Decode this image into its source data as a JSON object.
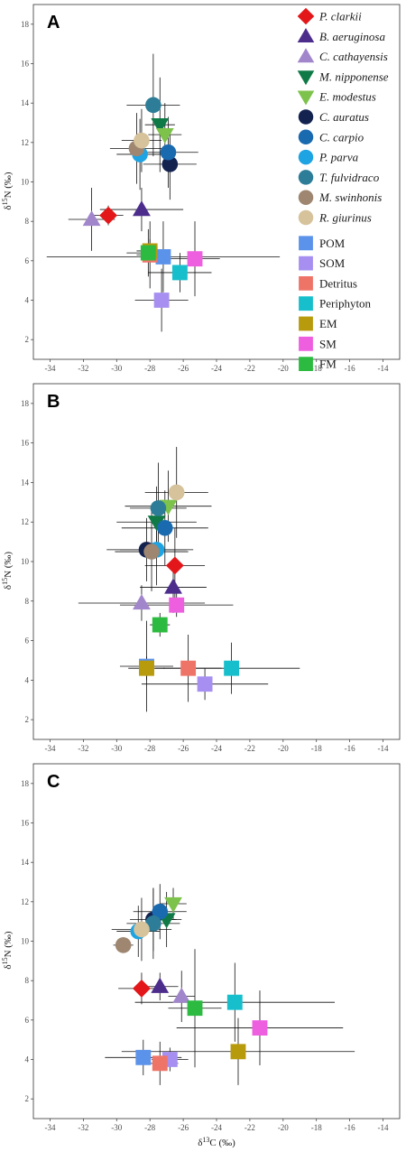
{
  "chart_data": [
    {
      "type": "scatter",
      "panel": "A",
      "xlabel": "",
      "ylabel": "δ15N (‰)",
      "xlim": [
        -35,
        -13
      ],
      "ylim": [
        1,
        19
      ],
      "xticks": [
        -34,
        -32,
        -30,
        -28,
        -26,
        -24,
        -22,
        -20,
        -18,
        -16,
        -14
      ],
      "yticks": [
        2,
        4,
        6,
        8,
        10,
        12,
        14,
        16,
        18
      ],
      "grid": false,
      "legend": "top-right",
      "points": [
        {
          "name": "P. clarkii",
          "x": -30.5,
          "y": 8.3,
          "xerr": 0.9,
          "yerr": 0.5
        },
        {
          "name": "B. aeruginosa",
          "x": -28.5,
          "y": 8.6,
          "xerr": 2.5,
          "yerr": 1.1
        },
        {
          "name": "C. cathayensis",
          "x": -31.5,
          "y": 8.1,
          "xerr": 1.4,
          "yerr": 1.6
        },
        {
          "name": "M. nipponense",
          "x": -27.4,
          "y": 12.9,
          "xerr": 0.9,
          "yerr": 2.4
        },
        {
          "name": "E. modestus",
          "x": -27.1,
          "y": 12.4,
          "xerr": 1.0,
          "yerr": 1.6
        },
        {
          "name": "C. auratus",
          "x": -26.8,
          "y": 10.9,
          "xerr": 1.6,
          "yerr": 1.8
        },
        {
          "name": "C. carpio",
          "x": -26.9,
          "y": 11.5,
          "xerr": 1.8,
          "yerr": 1.8
        },
        {
          "name": "P. parva",
          "x": -28.6,
          "y": 11.4,
          "xerr": 1.4,
          "yerr": 1.8
        },
        {
          "name": "T. fulvidraco",
          "x": -27.8,
          "y": 13.9,
          "xerr": 1.6,
          "yerr": 2.6
        },
        {
          "name": "M. swinhonis",
          "x": -28.8,
          "y": 11.7,
          "xerr": 1.6,
          "yerr": 1.8
        },
        {
          "name": "R. giurinus",
          "x": -28.5,
          "y": 12.1,
          "xerr": 1.2,
          "yerr": 1.6
        },
        {
          "name": "POM",
          "x": -27.2,
          "y": 6.2,
          "xerr": 7.0,
          "yerr": 1.8
        },
        {
          "name": "SOM",
          "x": -27.3,
          "y": 4.0,
          "xerr": 1.6,
          "yerr": 1.6
        },
        {
          "name": "Detritus",
          "x": -28.0,
          "y": 6.3,
          "xerr": 0.8,
          "yerr": 1.7
        },
        {
          "name": "Periphyton",
          "x": -26.2,
          "y": 5.4,
          "xerr": 1.9,
          "yerr": 1.0
        },
        {
          "name": "EM",
          "x": -28.0,
          "y": 6.5,
          "xerr": 0.8,
          "yerr": 0.6
        },
        {
          "name": "SM",
          "x": -25.3,
          "y": 6.1,
          "xerr": 1.5,
          "yerr": 1.9
        },
        {
          "name": "FM",
          "x": -28.1,
          "y": 6.4,
          "xerr": 1.3,
          "yerr": 1.2
        }
      ]
    },
    {
      "type": "scatter",
      "panel": "B",
      "xlabel": "",
      "ylabel": "δ15N (‰)",
      "xlim": [
        -35,
        -13
      ],
      "ylim": [
        1,
        19
      ],
      "xticks": [
        -34,
        -32,
        -30,
        -28,
        -26,
        -24,
        -22,
        -20,
        -18,
        -16,
        -14
      ],
      "yticks": [
        2,
        4,
        6,
        8,
        10,
        12,
        14,
        16,
        18
      ],
      "grid": false,
      "points": [
        {
          "name": "P. clarkii",
          "x": -26.5,
          "y": 9.8,
          "xerr": 1.8,
          "yerr": 1.9
        },
        {
          "name": "B. aeruginosa",
          "x": -26.6,
          "y": 8.7,
          "xerr": 2.0,
          "yerr": 1.3
        },
        {
          "name": "C. cathayensis",
          "x": -28.5,
          "y": 7.9,
          "xerr": 3.8,
          "yerr": 0.9
        },
        {
          "name": "M. nipponense",
          "x": -27.6,
          "y": 12.0,
          "xerr": 2.4,
          "yerr": 1.8
        },
        {
          "name": "E. modestus",
          "x": -26.9,
          "y": 12.8,
          "xerr": 2.6,
          "yerr": 1.8
        },
        {
          "name": "C. auratus",
          "x": -28.2,
          "y": 10.6,
          "xerr": 2.4,
          "yerr": 1.6
        },
        {
          "name": "C. carpio",
          "x": -27.1,
          "y": 11.7,
          "xerr": 2.6,
          "yerr": 1.9
        },
        {
          "name": "P. parva",
          "x": -27.6,
          "y": 10.6,
          "xerr": 2.2,
          "yerr": 1.8
        },
        {
          "name": "T. fulvidraco",
          "x": -27.5,
          "y": 12.7,
          "xerr": 1.7,
          "yerr": 2.3
        },
        {
          "name": "M. swinhonis",
          "x": -27.9,
          "y": 10.5,
          "xerr": 2.2,
          "yerr": 2.0
        },
        {
          "name": "R. giurinus",
          "x": -26.4,
          "y": 13.5,
          "xerr": 1.9,
          "yerr": 2.3
        },
        {
          "name": "POM",
          "x": -28.2,
          "y": 4.7,
          "xerr": 1.6,
          "yerr": 2.3
        },
        {
          "name": "SOM",
          "x": -24.7,
          "y": 3.8,
          "xerr": 3.8,
          "yerr": 0.8
        },
        {
          "name": "Detritus",
          "x": -25.7,
          "y": 4.6,
          "xerr": 2.0,
          "yerr": 1.7
        },
        {
          "name": "Periphyton",
          "x": -23.1,
          "y": 4.6,
          "xerr": 4.1,
          "yerr": 1.3
        },
        {
          "name": "EM",
          "x": -28.2,
          "y": 4.6,
          "xerr": 1.1,
          "yerr": 0.6
        },
        {
          "name": "SM",
          "x": -26.4,
          "y": 7.8,
          "xerr": 3.4,
          "yerr": 0.6
        },
        {
          "name": "FM",
          "x": -27.4,
          "y": 6.8,
          "xerr": 0.6,
          "yerr": 0.6
        }
      ]
    },
    {
      "type": "scatter",
      "panel": "C",
      "xlabel": "δ13C (‰)",
      "ylabel": "δ15N (‰)",
      "xlim": [
        -35,
        -13
      ],
      "ylim": [
        1,
        19
      ],
      "xticks": [
        -34,
        -32,
        -30,
        -28,
        -26,
        -24,
        -22,
        -20,
        -18,
        -16,
        -14
      ],
      "yticks": [
        2,
        4,
        6,
        8,
        10,
        12,
        14,
        16,
        18
      ],
      "grid": false,
      "points": [
        {
          "name": "P. clarkii",
          "x": -28.5,
          "y": 7.6,
          "xerr": 1.4,
          "yerr": 0.8
        },
        {
          "name": "B. aeruginosa",
          "x": -27.4,
          "y": 7.7,
          "xerr": 1.1,
          "yerr": 0.7
        },
        {
          "name": "C. cathayensis",
          "x": -26.1,
          "y": 7.2,
          "xerr": 0.8,
          "yerr": 1.3
        },
        {
          "name": "M. nipponense",
          "x": -27.0,
          "y": 11.1,
          "xerr": 0.9,
          "yerr": 1.4
        },
        {
          "name": "E. modestus",
          "x": -26.6,
          "y": 11.9,
          "xerr": 0.8,
          "yerr": 0.8
        },
        {
          "name": "C. auratus",
          "x": -27.8,
          "y": 11.1,
          "xerr": 1.4,
          "yerr": 1.6
        },
        {
          "name": "C. carpio",
          "x": -27.4,
          "y": 11.5,
          "xerr": 1.6,
          "yerr": 1.4
        },
        {
          "name": "P. parva",
          "x": -28.7,
          "y": 10.5,
          "xerr": 1.3,
          "yerr": 1.3
        },
        {
          "name": "T. fulvidraco",
          "x": -27.8,
          "y": 10.9,
          "xerr": 1.6,
          "yerr": 1.8
        },
        {
          "name": "M. swinhonis",
          "x": -29.6,
          "y": 9.8,
          "xerr": 0.6,
          "yerr": 0.4
        },
        {
          "name": "R. giurinus",
          "x": -28.5,
          "y": 10.6,
          "xerr": 1.8,
          "yerr": 1.6
        },
        {
          "name": "POM",
          "x": -28.4,
          "y": 4.1,
          "xerr": 2.3,
          "yerr": 0.9
        },
        {
          "name": "SOM",
          "x": -26.8,
          "y": 4.0,
          "xerr": 1.1,
          "yerr": 0.6
        },
        {
          "name": "Detritus",
          "x": -27.4,
          "y": 3.8,
          "xerr": 1.1,
          "yerr": 1.1
        },
        {
          "name": "Periphyton",
          "x": -22.9,
          "y": 6.9,
          "xerr": 6.0,
          "yerr": 2.0
        },
        {
          "name": "EM",
          "x": -22.7,
          "y": 4.4,
          "xerr": 7.0,
          "yerr": 1.7
        },
        {
          "name": "SM",
          "x": -21.4,
          "y": 5.6,
          "xerr": 5.0,
          "yerr": 1.9
        },
        {
          "name": "FM",
          "x": -25.3,
          "y": 6.6,
          "xerr": 1.6,
          "yerr": 3.0
        }
      ]
    }
  ],
  "legend": [
    {
      "label": "P. clarkii",
      "italic": true,
      "shape": "diamond",
      "color": "#e3171a"
    },
    {
      "label": "B. aeruginosa",
      "italic": true,
      "shape": "triangle-up",
      "color": "#4d2d8c"
    },
    {
      "label": "C. cathayensis",
      "italic": true,
      "shape": "triangle-up",
      "color": "#a286cc"
    },
    {
      "label": "M. nipponense",
      "italic": true,
      "shape": "triangle-down",
      "color": "#0f7a46"
    },
    {
      "label": "E. modestus",
      "italic": true,
      "shape": "triangle-down",
      "color": "#7dc24b"
    },
    {
      "label": "C. auratus",
      "italic": true,
      "shape": "circle",
      "color": "#13224f"
    },
    {
      "label": "C. carpio",
      "italic": true,
      "shape": "circle",
      "color": "#1a6ab0"
    },
    {
      "label": "P. parva",
      "italic": true,
      "shape": "circle",
      "color": "#1ea3e3"
    },
    {
      "label": "T. fulvidraco",
      "italic": true,
      "shape": "circle",
      "color": "#2d7d98"
    },
    {
      "label": "M. swinhonis",
      "italic": true,
      "shape": "circle",
      "color": "#9e8670"
    },
    {
      "label": "R. giurinus",
      "italic": true,
      "shape": "circle",
      "color": "#d6c29b"
    },
    {
      "label": "POM",
      "italic": false,
      "shape": "square",
      "color": "#5b92ea"
    },
    {
      "label": "SOM",
      "italic": false,
      "shape": "square",
      "color": "#a68ff0"
    },
    {
      "label": "Detritus",
      "italic": false,
      "shape": "square",
      "color": "#ef7468"
    },
    {
      "label": "Periphyton",
      "italic": false,
      "shape": "square",
      "color": "#17bfcc"
    },
    {
      "label": "EM",
      "italic": false,
      "shape": "square",
      "color": "#b89b0c"
    },
    {
      "label": "SM",
      "italic": false,
      "shape": "square",
      "color": "#ee5fe0"
    },
    {
      "label": "FM",
      "italic": false,
      "shape": "square",
      "color": "#2cbb40"
    }
  ]
}
